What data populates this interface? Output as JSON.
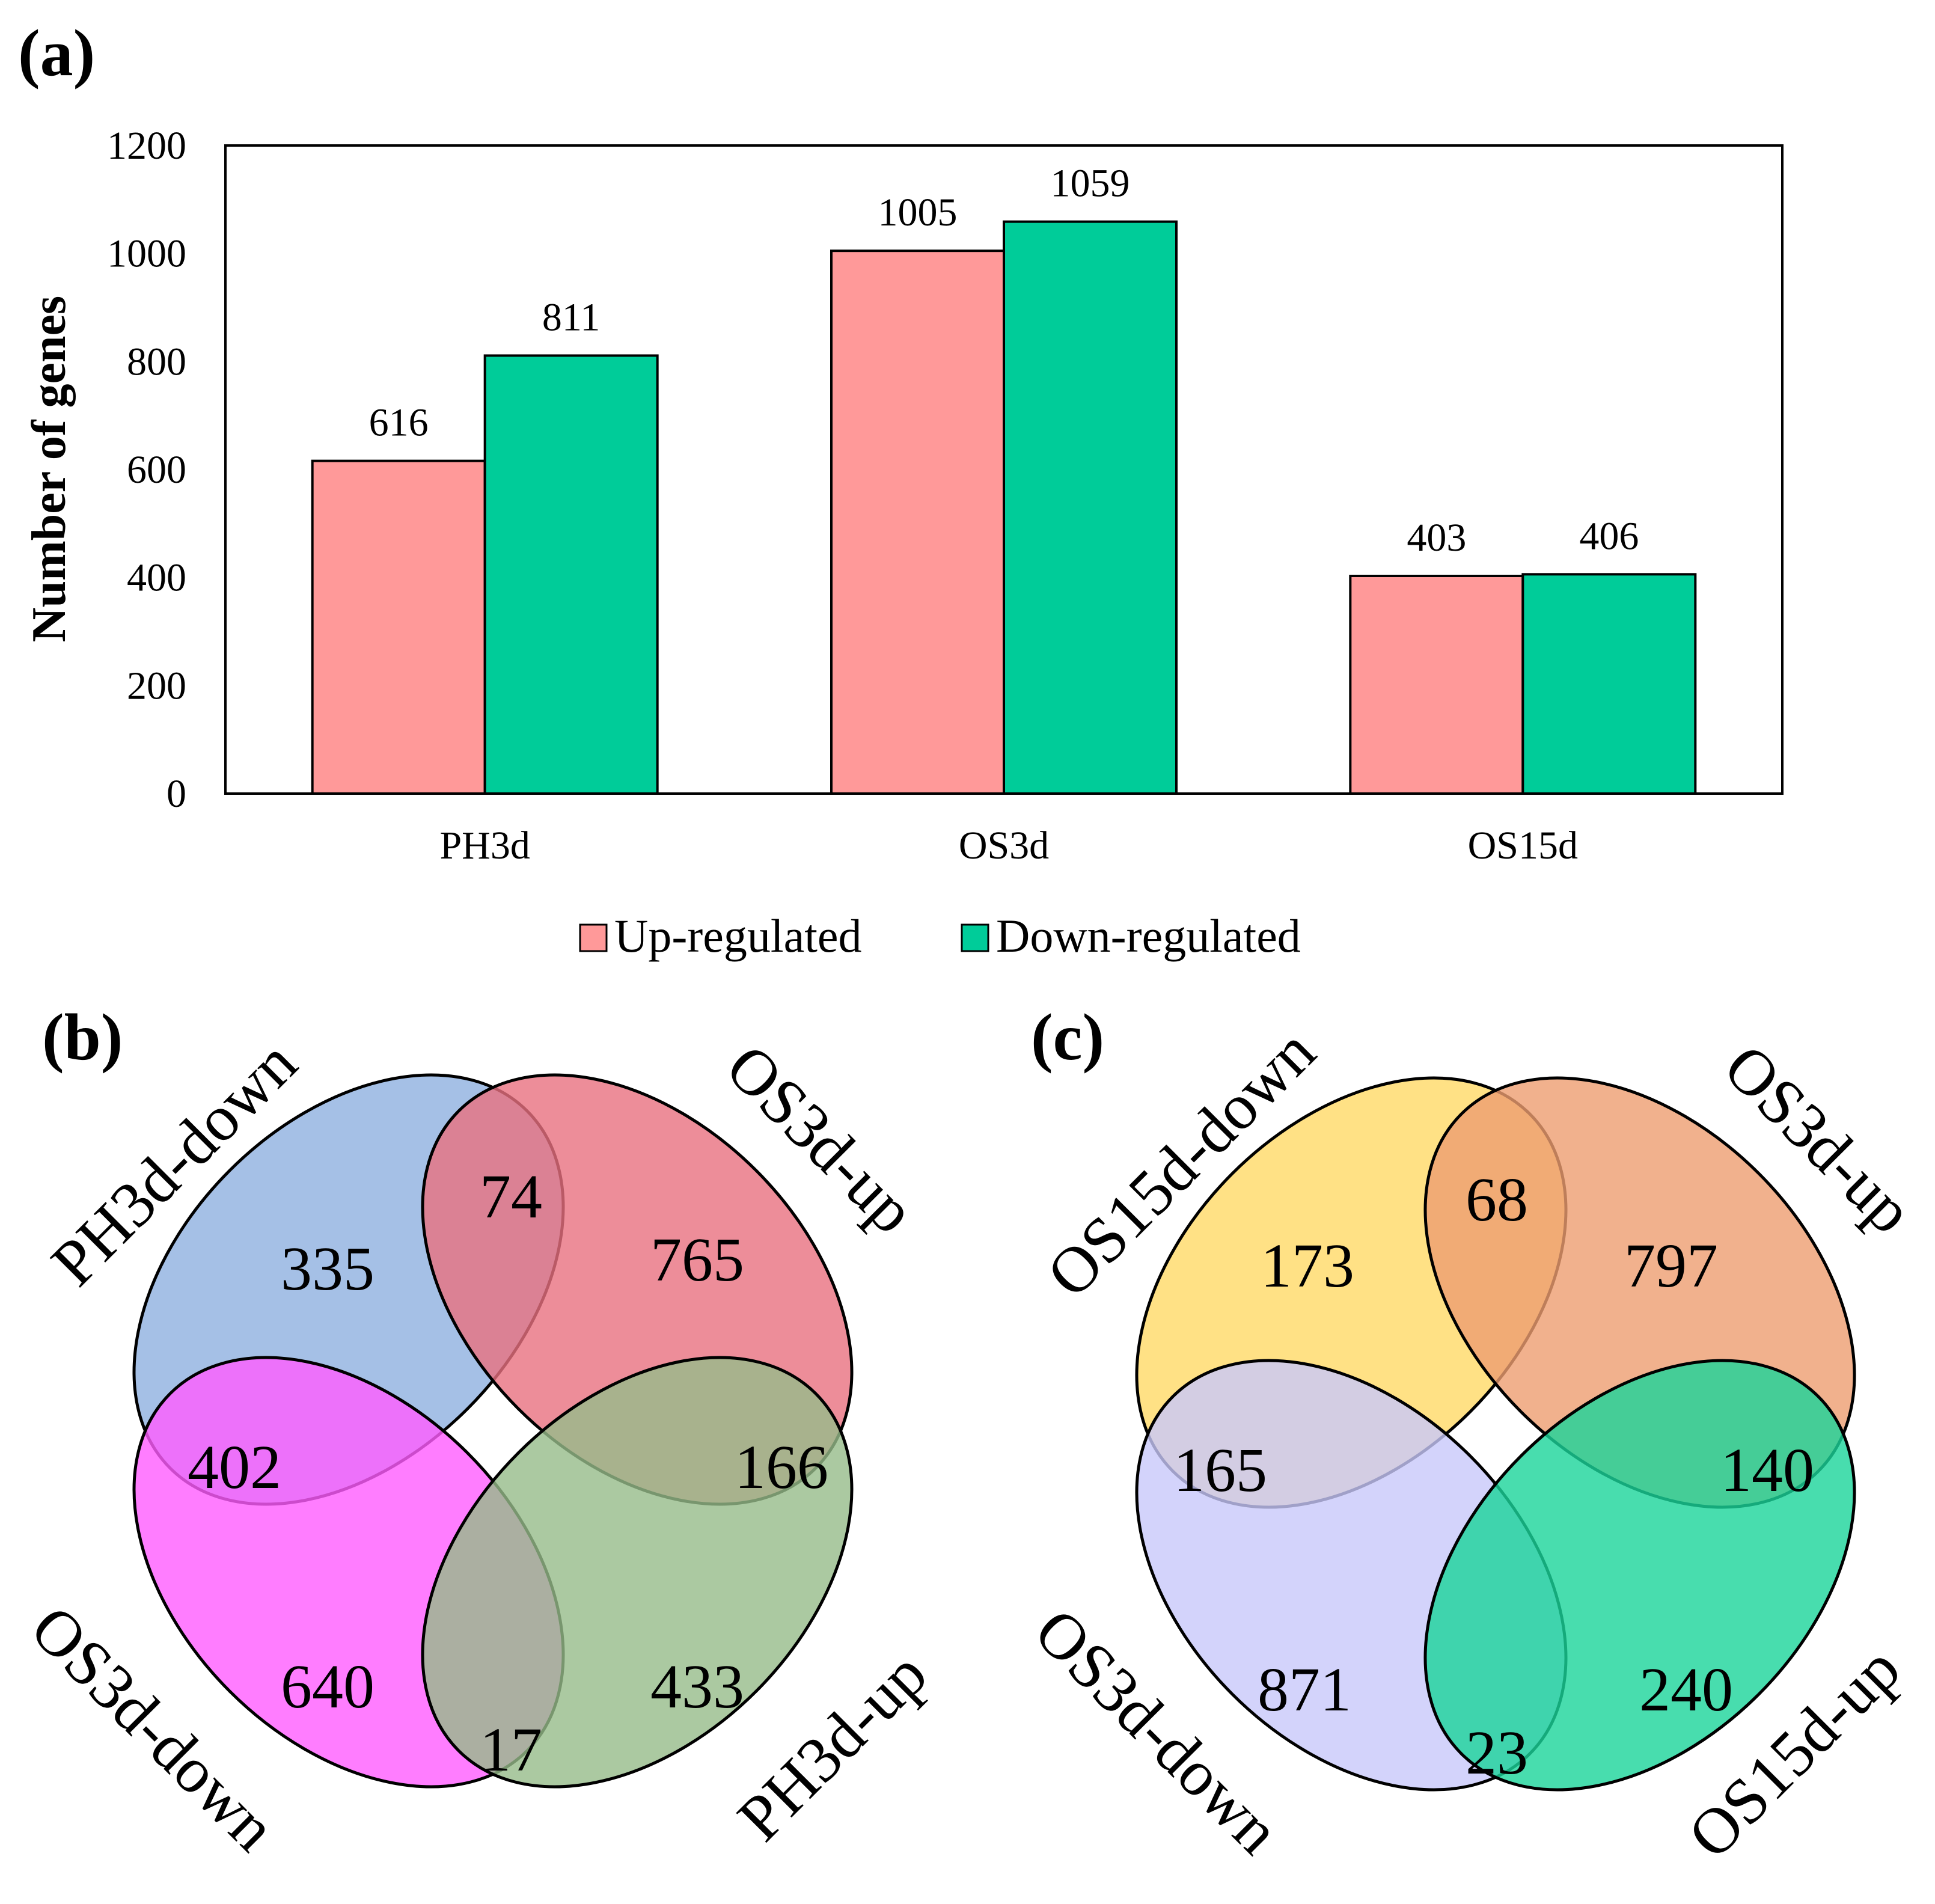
{
  "panels": {
    "a": "(a)",
    "b": "(b)",
    "c": "(c)"
  },
  "chart_data": [
    {
      "type": "bar",
      "panel": "(a)",
      "categories": [
        "PH3d",
        "OS3d",
        "OS15d"
      ],
      "series": [
        {
          "name": "Up-regulated",
          "values": [
            616,
            1005,
            403
          ],
          "color": "#FF9999"
        },
        {
          "name": "Down-regulated",
          "values": [
            811,
            1059,
            406
          ],
          "color": "#00CC99"
        }
      ],
      "xlabel": "",
      "ylabel": "Number of genes",
      "ylim": [
        0,
        1200
      ],
      "yticks": [
        0,
        200,
        400,
        600,
        800,
        1000,
        1200
      ],
      "grid": false,
      "legend_position": "bottom"
    },
    {
      "type": "venn",
      "panel": "(b)",
      "sets": [
        {
          "name": "PH3d-down",
          "color": "#8EB0E0"
        },
        {
          "name": "OS3d-up",
          "color": "#E8707F"
        },
        {
          "name": "OS3d-down",
          "color": "#FF5CFF"
        },
        {
          "name": "PH3d-up",
          "color": "#96BC8A"
        }
      ],
      "regions": {
        "PH3d-down_only": 335,
        "PH3d-down&OS3d-up": 74,
        "OS3d-up_only": 765,
        "PH3d-down&OS3d-down": 402,
        "OS3d-up&PH3d-up": 166,
        "OS3d-down_only": 640,
        "OS3d-down&PH3d-up": 17,
        "PH3d-up_only": 433
      }
    },
    {
      "type": "venn",
      "panel": "(c)",
      "sets": [
        {
          "name": "OS15d-down",
          "color": "#FFD966"
        },
        {
          "name": "OS3d-up",
          "color": "#EE9D70"
        },
        {
          "name": "OS3d-down",
          "color": "#C8C8FA"
        },
        {
          "name": "OS15d-up",
          "color": "#1AD59A"
        }
      ],
      "regions": {
        "OS15d-down_only": 173,
        "OS15d-down&OS3d-up": 68,
        "OS3d-up_only": 797,
        "OS15d-down&OS3d-down": 165,
        "OS3d-up&OS15d-up": 140,
        "OS3d-down_only": 871,
        "OS3d-down&OS15d-up": 23,
        "OS15d-up_only": 240
      }
    }
  ]
}
